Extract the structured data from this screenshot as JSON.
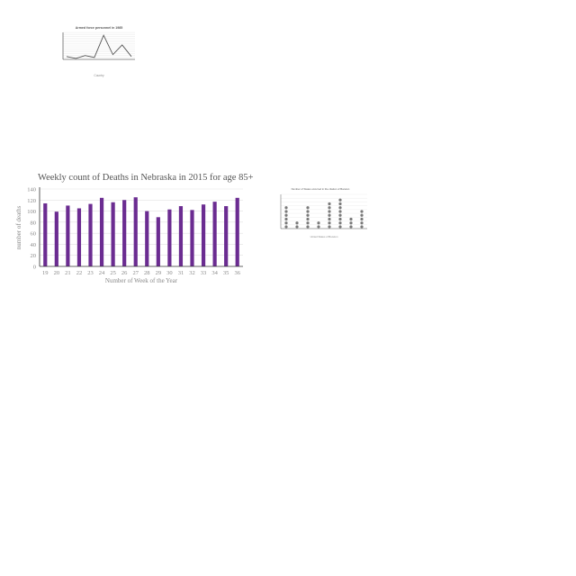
{
  "colors": {
    "bar": "#6b2c91",
    "line": "#555555",
    "dot": "#7a7a7a",
    "axis": "#333333",
    "grid": "#e2e2e2",
    "text_dark": "#555555",
    "text_light": "#888888"
  },
  "chart_data": [
    {
      "type": "line",
      "title": "Armed force personnel in 1985",
      "xlabel": "Country",
      "ylabel": "",
      "categories": [
        "",
        "",
        "",
        "",
        "",
        "",
        "",
        ""
      ],
      "values": [
        3,
        1,
        4,
        2,
        25,
        5,
        15,
        3
      ],
      "ylim": [
        0,
        28
      ],
      "grid": true,
      "yticks_labeled": false
    },
    {
      "type": "bar",
      "title": "Weekly count of  Deaths in Nebraska in 2015 for age 85+",
      "xlabel": "Number of Week of the Year",
      "ylabel": "number of deaths",
      "categories": [
        "19",
        "20",
        "21",
        "22",
        "23",
        "24",
        "25",
        "26",
        "27",
        "28",
        "29",
        "30",
        "31",
        "32",
        "33",
        "34",
        "35",
        "36"
      ],
      "values": [
        114,
        99,
        110,
        105,
        113,
        124,
        116,
        120,
        125,
        100,
        89,
        103,
        109,
        102,
        112,
        117,
        109,
        124
      ],
      "ylim": [
        0,
        140
      ],
      "yticks": [
        0,
        20,
        40,
        60,
        80,
        100,
        120,
        140
      ],
      "grid": true,
      "legend": "none"
    },
    {
      "type": "scatter",
      "subtype": "dot-plot",
      "title": "Number of States occurred in the citation of Bocelon",
      "xlabel": "United States of Bocelon",
      "ylabel": "",
      "categories": [
        "",
        "",
        "",
        "",
        "",
        "",
        "",
        ""
      ],
      "values": [
        6,
        2,
        6,
        2,
        7,
        8,
        3,
        5
      ],
      "ylim": [
        0,
        9
      ],
      "grid": true
    }
  ]
}
